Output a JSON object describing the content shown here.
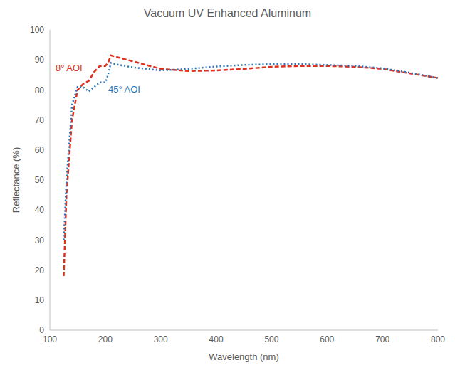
{
  "chart_data": {
    "type": "line",
    "title": "Vacuum UV Enhanced Aluminum",
    "x_label": "Wavelength (nm)",
    "y_label": "Reflectance (%)",
    "x": [
      125,
      130,
      140,
      150,
      160,
      170,
      180,
      190,
      200,
      205,
      210,
      220,
      250,
      300,
      350,
      400,
      450,
      500,
      550,
      600,
      650,
      700,
      750,
      800
    ],
    "series": [
      {
        "name": "8° AOI",
        "color": "#e0301e",
        "line_style": "dashed",
        "values": [
          18,
          45,
          70,
          80,
          82,
          83,
          86,
          88,
          88,
          89,
          91.5,
          91,
          89.5,
          87,
          86.3,
          86.5,
          87,
          87.7,
          88,
          88,
          87.7,
          87,
          85.5,
          84
        ]
      },
      {
        "name": "45° AOI",
        "color": "#2e75b6",
        "line_style": "dotted",
        "values": [
          30,
          50,
          75,
          81,
          81,
          79.5,
          81,
          82.5,
          82.5,
          85,
          89,
          88.5,
          87.5,
          86.5,
          87,
          87.8,
          88.3,
          88.6,
          88.6,
          88.3,
          88,
          87.2,
          85.7,
          84
        ]
      }
    ],
    "xlim": [
      100,
      800
    ],
    "xticks": [
      100,
      200,
      300,
      400,
      500,
      600,
      700,
      800
    ],
    "ylim": [
      0,
      100
    ],
    "yticks": [
      0,
      10,
      20,
      30,
      40,
      50,
      60,
      70,
      80,
      90,
      100
    ],
    "grid": false
  }
}
